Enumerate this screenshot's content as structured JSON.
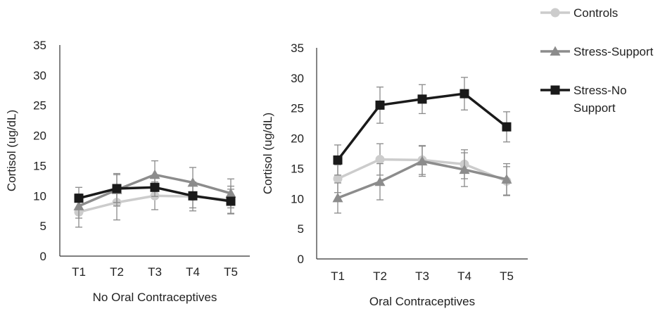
{
  "chart_data": [
    {
      "type": "line",
      "xlabel": "No Oral Contraceptives",
      "ylabel": "Cortisol (ug/dL)",
      "categories": [
        "T1",
        "T2",
        "T3",
        "T4",
        "T5"
      ],
      "ylim": [
        0,
        35
      ],
      "yticks": [
        "0",
        "5",
        "10",
        "15",
        "20",
        "25",
        "30",
        "35"
      ],
      "series": [
        {
          "name": "Controls",
          "values": [
            7.3,
            8.9,
            10.0,
            9.9,
            9.3
          ],
          "errors": [
            2.5,
            2.9,
            2.3,
            2.4,
            2.3
          ]
        },
        {
          "name": "Stress-Support",
          "values": [
            8.3,
            11.0,
            13.5,
            12.2,
            10.4
          ],
          "errors": [
            2.0,
            2.7,
            2.3,
            2.5,
            2.4
          ]
        },
        {
          "name": "Stress-No Support",
          "values": [
            9.6,
            11.2,
            11.4,
            10.0,
            9.1
          ],
          "errors": [
            1.8,
            2.3,
            1.5,
            2.0,
            2.0
          ]
        }
      ]
    },
    {
      "type": "line",
      "xlabel": "Oral Contraceptives",
      "ylabel": "Cortisol (ug/dL)",
      "categories": [
        "T1",
        "T2",
        "T3",
        "T4",
        "T5"
      ],
      "ylim": [
        0,
        35
      ],
      "yticks": [
        "0",
        "5",
        "10",
        "15",
        "20",
        "25",
        "30",
        "35"
      ],
      "series": [
        {
          "name": "Controls",
          "values": [
            13.3,
            16.5,
            16.4,
            15.7,
            12.9
          ],
          "errors": [
            2.3,
            2.6,
            2.4,
            2.4,
            2.4
          ]
        },
        {
          "name": "Stress-Support",
          "values": [
            10.1,
            12.8,
            16.2,
            14.8,
            13.2
          ],
          "errors": [
            2.5,
            3.0,
            2.5,
            2.8,
            2.6
          ]
        },
        {
          "name": "Stress-No Support",
          "values": [
            16.4,
            25.5,
            26.5,
            27.4,
            21.9
          ],
          "errors": [
            2.5,
            3.0,
            2.4,
            2.7,
            2.5
          ]
        }
      ]
    }
  ],
  "legend": {
    "placement": "top-right",
    "items": [
      {
        "label_lines": [
          "Controls"
        ],
        "color": "#cccccc",
        "marker": "circle"
      },
      {
        "label_lines": [
          "Stress-Support"
        ],
        "color": "#8c8c8c",
        "marker": "triangle"
      },
      {
        "label_lines": [
          "Stress-No",
          "Support"
        ],
        "color": "#1a1a1a",
        "marker": "square"
      }
    ]
  },
  "colors": {
    "controls": "#cccccc",
    "stress_support": "#8c8c8c",
    "stress_no_support": "#1a1a1a",
    "axis": "#333333",
    "error_bar": "#8a8a8a"
  }
}
